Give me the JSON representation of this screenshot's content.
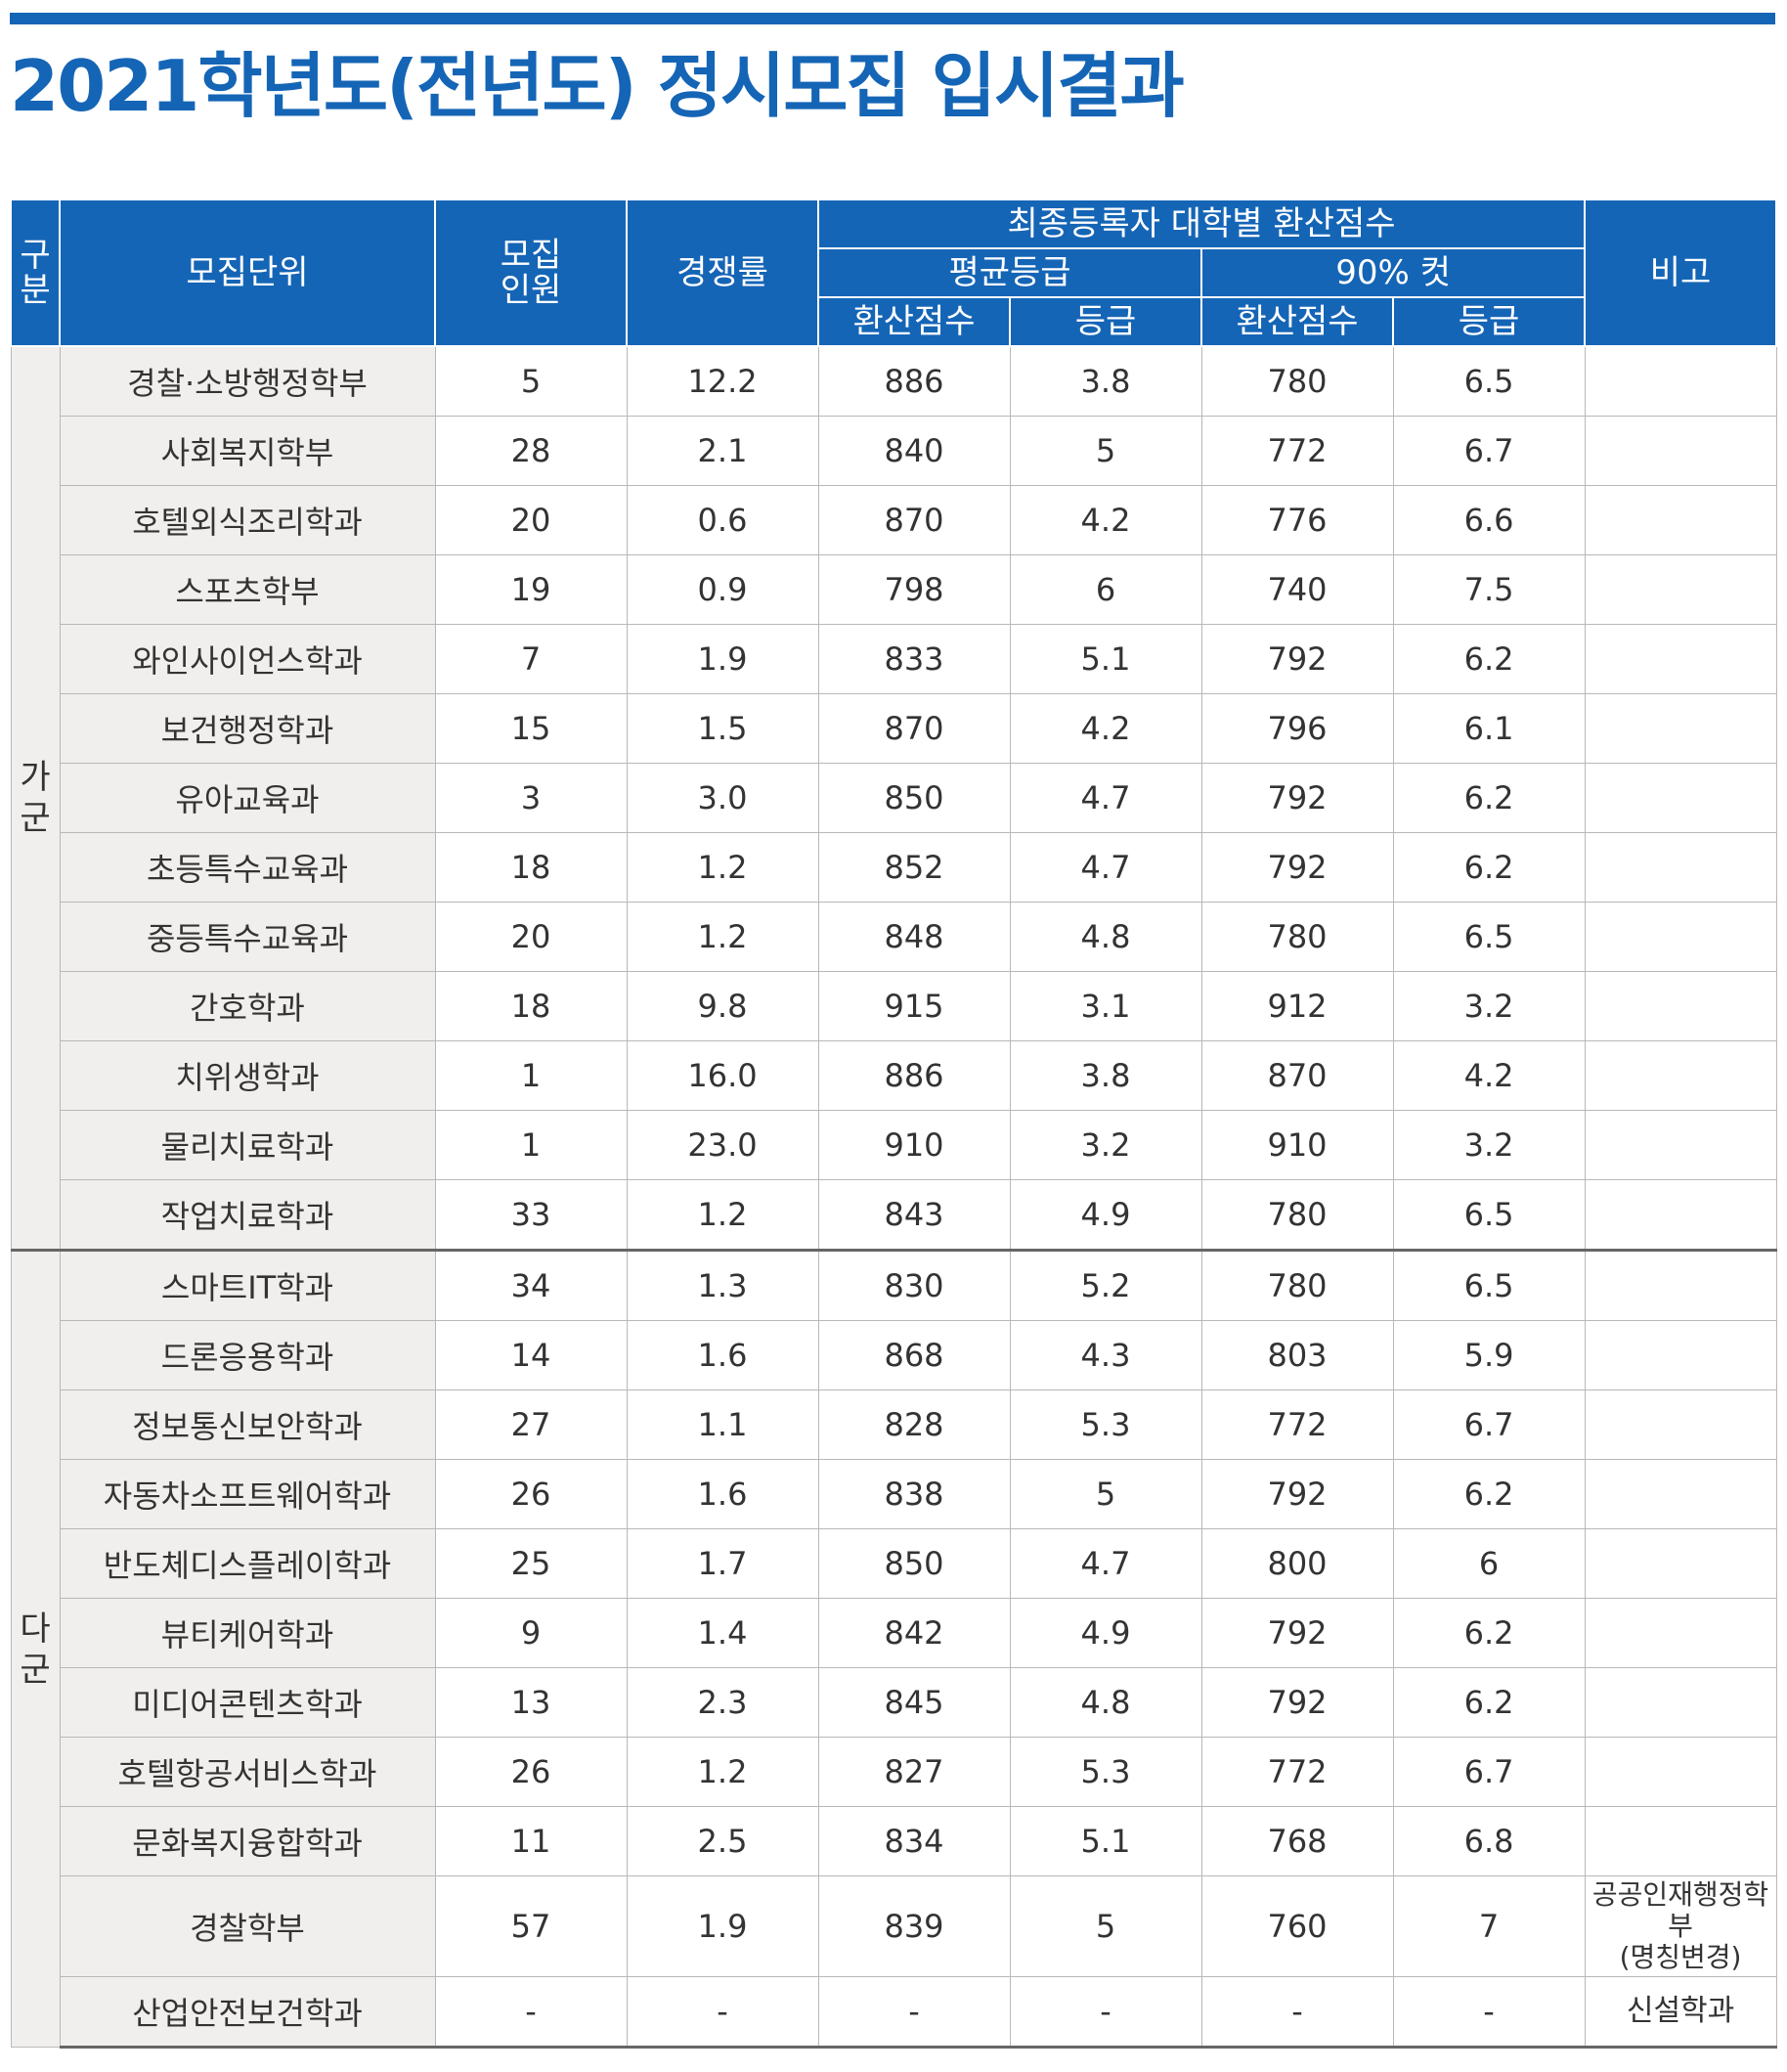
{
  "title": "2021학년도(전년도) 정시모집 입시결과",
  "colors": {
    "accent": "#1565b6",
    "dept_bg": "#f1efed"
  },
  "headers": {
    "group": [
      "구",
      "분"
    ],
    "unit": "모집단위",
    "quota": [
      "모집",
      "인원"
    ],
    "competition": "경쟁률",
    "final_score": "최종등록자 대학별 환산점수",
    "avg_grade": "평균등급",
    "cut90": "90% 컷",
    "score": "환산점수",
    "grade": "등급",
    "note": "비고"
  },
  "groups": [
    {
      "name": [
        "가",
        "군"
      ],
      "rows": [
        {
          "dept": "경찰·소방행정학부",
          "quota": "5",
          "ratio": "12.2",
          "avg_score": "886",
          "avg_grade": "3.8",
          "cut_score": "780",
          "cut_grade": "6.5",
          "note": ""
        },
        {
          "dept": "사회복지학부",
          "quota": "28",
          "ratio": "2.1",
          "avg_score": "840",
          "avg_grade": "5",
          "cut_score": "772",
          "cut_grade": "6.7",
          "note": ""
        },
        {
          "dept": "호텔외식조리학과",
          "quota": "20",
          "ratio": "0.6",
          "avg_score": "870",
          "avg_grade": "4.2",
          "cut_score": "776",
          "cut_grade": "6.6",
          "note": ""
        },
        {
          "dept": "스포츠학부",
          "quota": "19",
          "ratio": "0.9",
          "avg_score": "798",
          "avg_grade": "6",
          "cut_score": "740",
          "cut_grade": "7.5",
          "note": ""
        },
        {
          "dept": "와인사이언스학과",
          "quota": "7",
          "ratio": "1.9",
          "avg_score": "833",
          "avg_grade": "5.1",
          "cut_score": "792",
          "cut_grade": "6.2",
          "note": ""
        },
        {
          "dept": "보건행정학과",
          "quota": "15",
          "ratio": "1.5",
          "avg_score": "870",
          "avg_grade": "4.2",
          "cut_score": "796",
          "cut_grade": "6.1",
          "note": ""
        },
        {
          "dept": "유아교육과",
          "quota": "3",
          "ratio": "3.0",
          "avg_score": "850",
          "avg_grade": "4.7",
          "cut_score": "792",
          "cut_grade": "6.2",
          "note": ""
        },
        {
          "dept": "초등특수교육과",
          "quota": "18",
          "ratio": "1.2",
          "avg_score": "852",
          "avg_grade": "4.7",
          "cut_score": "792",
          "cut_grade": "6.2",
          "note": ""
        },
        {
          "dept": "중등특수교육과",
          "quota": "20",
          "ratio": "1.2",
          "avg_score": "848",
          "avg_grade": "4.8",
          "cut_score": "780",
          "cut_grade": "6.5",
          "note": ""
        },
        {
          "dept": "간호학과",
          "quota": "18",
          "ratio": "9.8",
          "avg_score": "915",
          "avg_grade": "3.1",
          "cut_score": "912",
          "cut_grade": "3.2",
          "note": ""
        },
        {
          "dept": "치위생학과",
          "quota": "1",
          "ratio": "16.0",
          "avg_score": "886",
          "avg_grade": "3.8",
          "cut_score": "870",
          "cut_grade": "4.2",
          "note": ""
        },
        {
          "dept": "물리치료학과",
          "quota": "1",
          "ratio": "23.0",
          "avg_score": "910",
          "avg_grade": "3.2",
          "cut_score": "910",
          "cut_grade": "3.2",
          "note": ""
        },
        {
          "dept": "작업치료학과",
          "quota": "33",
          "ratio": "1.2",
          "avg_score": "843",
          "avg_grade": "4.9",
          "cut_score": "780",
          "cut_grade": "6.5",
          "note": ""
        }
      ]
    },
    {
      "name": [
        "다",
        "군"
      ],
      "rows": [
        {
          "dept": "스마트IT학과",
          "quota": "34",
          "ratio": "1.3",
          "avg_score": "830",
          "avg_grade": "5.2",
          "cut_score": "780",
          "cut_grade": "6.5",
          "note": ""
        },
        {
          "dept": "드론응용학과",
          "quota": "14",
          "ratio": "1.6",
          "avg_score": "868",
          "avg_grade": "4.3",
          "cut_score": "803",
          "cut_grade": "5.9",
          "note": ""
        },
        {
          "dept": "정보통신보안학과",
          "quota": "27",
          "ratio": "1.1",
          "avg_score": "828",
          "avg_grade": "5.3",
          "cut_score": "772",
          "cut_grade": "6.7",
          "note": ""
        },
        {
          "dept": "자동차소프트웨어학과",
          "quota": "26",
          "ratio": "1.6",
          "avg_score": "838",
          "avg_grade": "5",
          "cut_score": "792",
          "cut_grade": "6.2",
          "note": ""
        },
        {
          "dept": "반도체디스플레이학과",
          "quota": "25",
          "ratio": "1.7",
          "avg_score": "850",
          "avg_grade": "4.7",
          "cut_score": "800",
          "cut_grade": "6",
          "note": ""
        },
        {
          "dept": "뷰티케어학과",
          "quota": "9",
          "ratio": "1.4",
          "avg_score": "842",
          "avg_grade": "4.9",
          "cut_score": "792",
          "cut_grade": "6.2",
          "note": ""
        },
        {
          "dept": "미디어콘텐츠학과",
          "quota": "13",
          "ratio": "2.3",
          "avg_score": "845",
          "avg_grade": "4.8",
          "cut_score": "792",
          "cut_grade": "6.2",
          "note": ""
        },
        {
          "dept": "호텔항공서비스학과",
          "quota": "26",
          "ratio": "1.2",
          "avg_score": "827",
          "avg_grade": "5.3",
          "cut_score": "772",
          "cut_grade": "6.7",
          "note": ""
        },
        {
          "dept": "문화복지융합학과",
          "quota": "11",
          "ratio": "2.5",
          "avg_score": "834",
          "avg_grade": "5.1",
          "cut_score": "768",
          "cut_grade": "6.8",
          "note": ""
        },
        {
          "dept": "경찰학부",
          "quota": "57",
          "ratio": "1.9",
          "avg_score": "839",
          "avg_grade": "5",
          "cut_score": "760",
          "cut_grade": "7",
          "note": "공공인재행정학부",
          "note2": "(명칭변경)"
        },
        {
          "dept": "산업안전보건학과",
          "quota": "-",
          "ratio": "-",
          "avg_score": "-",
          "avg_grade": "-",
          "cut_score": "-",
          "cut_grade": "-",
          "note": "신설학과"
        }
      ]
    }
  ]
}
